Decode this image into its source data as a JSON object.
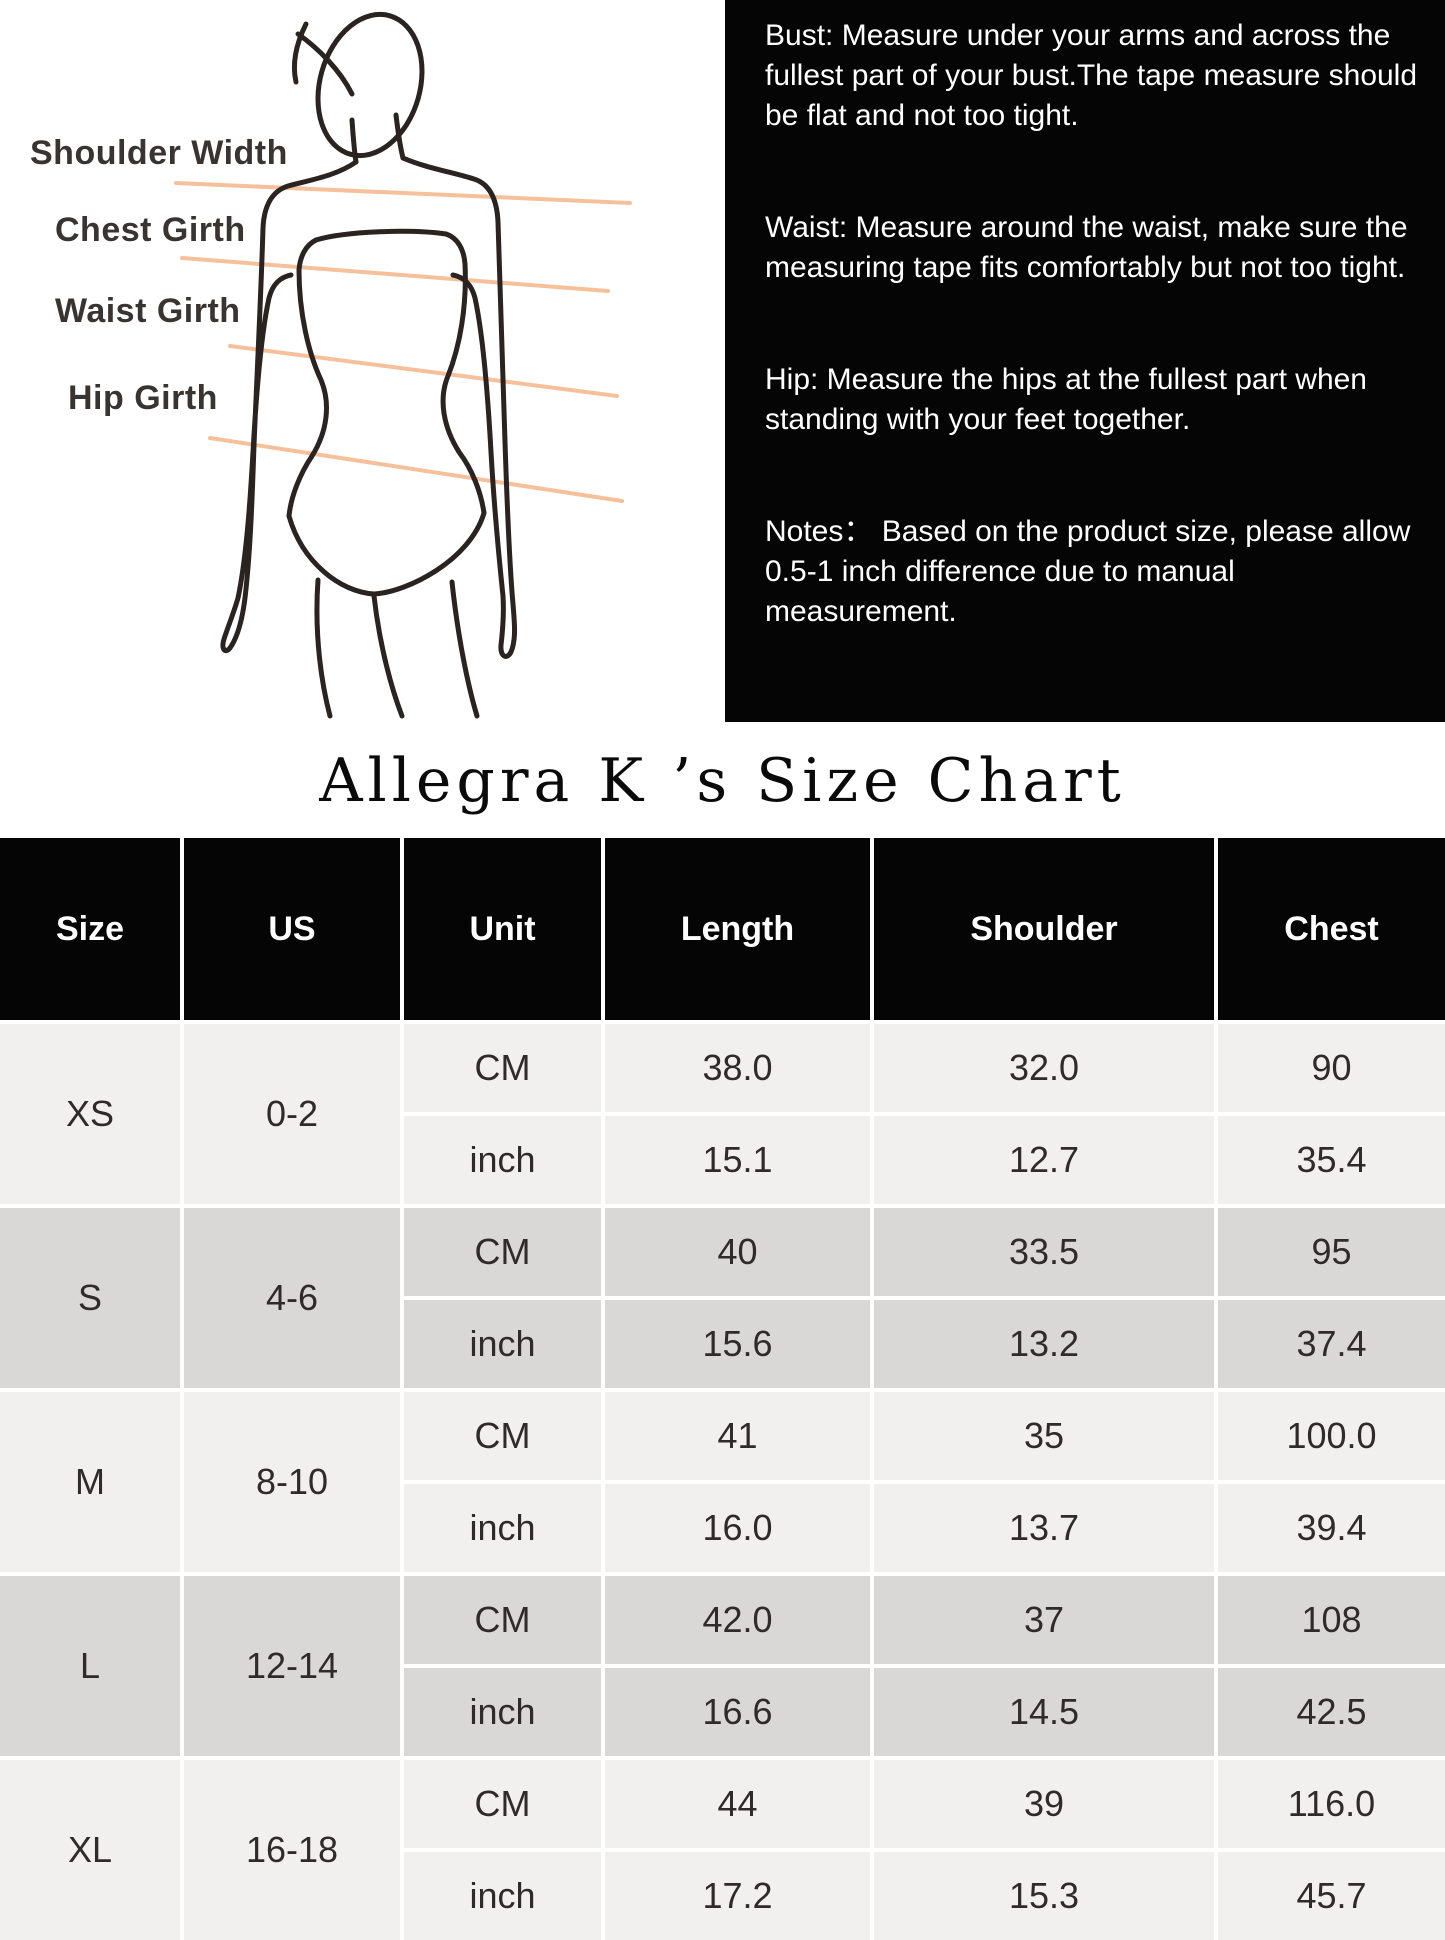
{
  "figure": {
    "labels": {
      "shoulder": "Shoulder Width",
      "chest": "Chest Girth",
      "waist": "Waist Girth",
      "hip": "Hip Girth"
    }
  },
  "instructions": {
    "bust": "Bust: Measure under your arms and across the fullest part of your bust.The tape measure should be flat and not too tight.",
    "waist": "Waist: Measure around the waist, make sure the measuring tape fits comfortably but not too tight.",
    "hip": "Hip: Measure the hips at the fullest part when standing with your feet together.",
    "notes": "Notes： Based on the product size, please allow 0.5-1 inch difference due to manual measurement."
  },
  "title": "Allegra K ’s Size Chart",
  "table": {
    "columns": [
      "Size",
      "US",
      "Unit",
      "Length",
      "Shoulder",
      "Chest"
    ],
    "unit_rows": [
      "CM",
      "inch"
    ],
    "measure_columns": [
      "length",
      "shoulder",
      "chest"
    ],
    "groups": [
      {
        "size": "XS",
        "us": "0-2",
        "cm": [
          "38.0",
          "32.0",
          "90"
        ],
        "inch": [
          "15.1",
          "12.7",
          "35.4"
        ],
        "shade": "light"
      },
      {
        "size": "S",
        "us": "4-6",
        "cm": [
          "40",
          "33.5",
          "95"
        ],
        "inch": [
          "15.6",
          "13.2",
          "37.4"
        ],
        "shade": "dark"
      },
      {
        "size": "M",
        "us": "8-10",
        "cm": [
          "41",
          "35",
          "100.0"
        ],
        "inch": [
          "16.0",
          "13.7",
          "39.4"
        ],
        "shade": "light"
      },
      {
        "size": "L",
        "us": "12-14",
        "cm": [
          "42.0",
          "37",
          "108"
        ],
        "inch": [
          "16.6",
          "14.5",
          "42.5"
        ],
        "shade": "dark"
      },
      {
        "size": "XL",
        "us": "16-18",
        "cm": [
          "44",
          "39",
          "116.0"
        ],
        "inch": [
          "17.2",
          "15.3",
          "45.7"
        ],
        "shade": "light"
      }
    ]
  },
  "colors": {
    "accent_line": "#f5c09a",
    "sketch_stroke": "#2b231f",
    "row_light": "#f1f0ee",
    "row_dark": "#d9d8d6",
    "header_bg": "#050505"
  }
}
